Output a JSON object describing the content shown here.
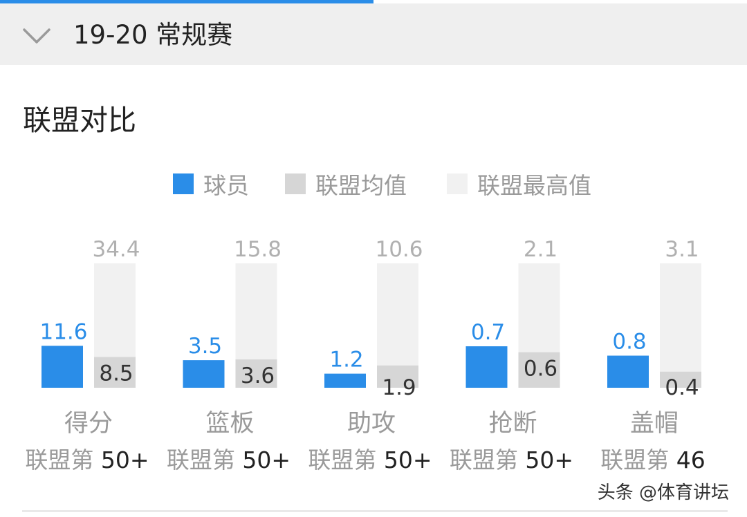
{
  "header": {
    "season_title": "19-20 常规赛"
  },
  "section": {
    "title": "联盟对比"
  },
  "legend": [
    {
      "label": "球员",
      "color": "#2a8de8"
    },
    {
      "label": "联盟均值",
      "color": "#d6d6d6"
    },
    {
      "label": "联盟最高值",
      "color": "#f1f1f1"
    }
  ],
  "chart_data": {
    "type": "bar",
    "categories": [
      "得分",
      "篮板",
      "助攻",
      "抢断",
      "盖帽"
    ],
    "series": [
      {
        "name": "球员",
        "values": [
          11.6,
          3.5,
          1.2,
          0.7,
          0.8
        ],
        "color": "#2a8de8"
      },
      {
        "name": "联盟均值",
        "values": [
          8.5,
          3.6,
          1.9,
          0.6,
          0.4
        ],
        "color": "#d6d6d6"
      },
      {
        "name": "联盟最高值",
        "values": [
          34.4,
          15.8,
          10.6,
          2.1,
          3.1
        ],
        "color": "#f1f1f1"
      }
    ],
    "ranks": [
      {
        "prefix": "联盟第",
        "value": "50+"
      },
      {
        "prefix": "联盟第",
        "value": "50+"
      },
      {
        "prefix": "联盟第",
        "value": "50+"
      },
      {
        "prefix": "联盟第",
        "value": "50+"
      },
      {
        "prefix": "联盟第",
        "value": "46"
      }
    ],
    "grid": false,
    "legend_position": "top"
  },
  "watermark": "头条 @体育讲坛"
}
